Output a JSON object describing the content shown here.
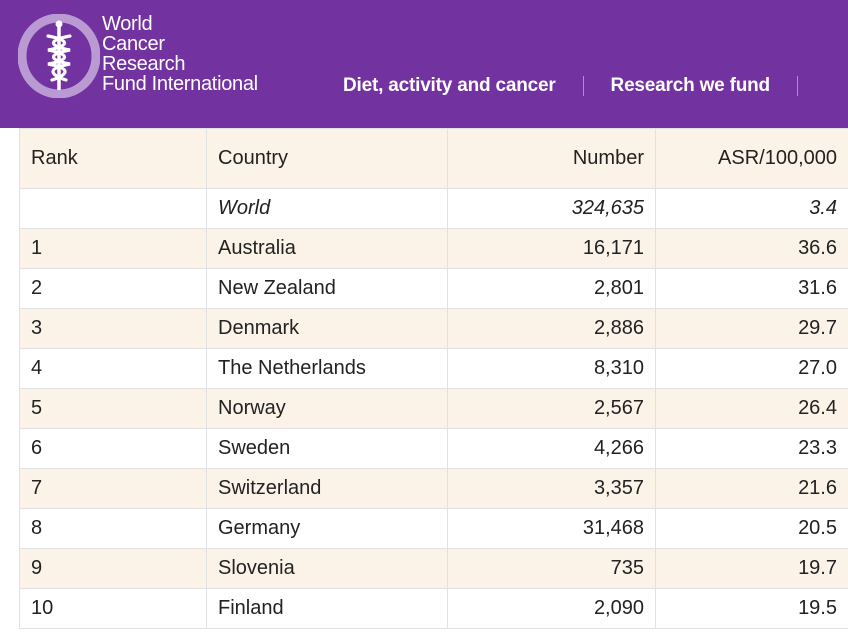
{
  "brand": {
    "lines": [
      "World",
      "Cancer",
      "Research",
      "Fund International"
    ],
    "logo_icon": "caduceus-icon",
    "colors": {
      "header_bg": "#7232a0",
      "logo_oval": "#b99ad3",
      "row_tint": "#fcf3e8"
    }
  },
  "nav": {
    "items": [
      {
        "label": "Diet, activity and cancer"
      },
      {
        "label": "Research we fund"
      }
    ]
  },
  "table": {
    "headers": {
      "rank": "Rank",
      "country": "Country",
      "number": "Number",
      "asr": "ASR/100,000"
    },
    "world": {
      "rank": "",
      "country": "World",
      "number": "324,635",
      "asr": "3.4"
    },
    "rows": [
      {
        "rank": "1",
        "country": "Australia",
        "number": "16,171",
        "asr": "36.6"
      },
      {
        "rank": "2",
        "country": "New Zealand",
        "number": "2,801",
        "asr": "31.6"
      },
      {
        "rank": "3",
        "country": "Denmark",
        "number": "2,886",
        "asr": "29.7"
      },
      {
        "rank": "4",
        "country": "The Netherlands",
        "number": "8,310",
        "asr": "27.0"
      },
      {
        "rank": "5",
        "country": "Norway",
        "number": "2,567",
        "asr": "26.4"
      },
      {
        "rank": "6",
        "country": "Sweden",
        "number": "4,266",
        "asr": "23.3"
      },
      {
        "rank": "7",
        "country": "Switzerland",
        "number": "3,357",
        "asr": "21.6"
      },
      {
        "rank": "8",
        "country": "Germany",
        "number": "31,468",
        "asr": "20.5"
      },
      {
        "rank": "9",
        "country": "Slovenia",
        "number": "735",
        "asr": "19.7"
      },
      {
        "rank": "10",
        "country": "Finland",
        "number": "2,090",
        "asr": "19.5"
      }
    ]
  }
}
